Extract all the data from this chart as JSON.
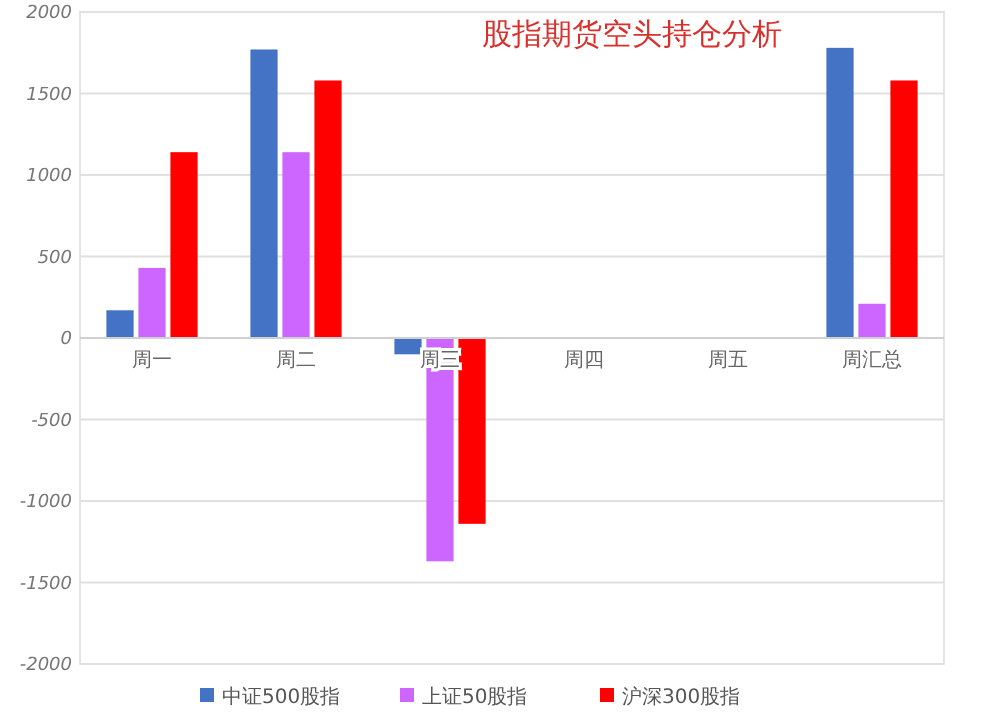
{
  "chart_data": {
    "type": "bar",
    "title": "股指期货空头持仓分析",
    "categories": [
      "周一",
      "周二",
      "周三",
      "周四",
      "周五",
      "周汇总"
    ],
    "series": [
      {
        "name": "中证500股指",
        "color": "#4472c4",
        "values": [
          170,
          1770,
          -100,
          0,
          0,
          1780
        ]
      },
      {
        "name": "上证50股指",
        "color": "#cc66ff",
        "values": [
          430,
          1140,
          -1370,
          0,
          0,
          210
        ]
      },
      {
        "name": "沪深300股指",
        "color": "#ff0000",
        "values": [
          1140,
          1580,
          -1140,
          0,
          0,
          1580
        ]
      }
    ],
    "ylim": [
      -2000,
      2000
    ],
    "yticks": [
      -2000,
      -1500,
      -1000,
      -500,
      0,
      500,
      1000,
      1500,
      2000
    ],
    "grid": "y",
    "legend": "bottom"
  }
}
